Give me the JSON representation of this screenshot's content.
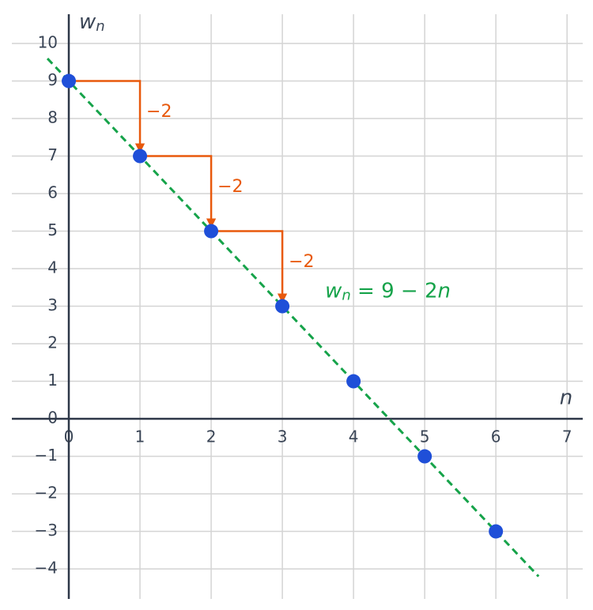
{
  "chart_data": {
    "type": "scatter",
    "x_label": "n",
    "y_label": "w",
    "y_label_subscript": "n",
    "xlim": [
      -0.8,
      7.22
    ],
    "ylim": [
      -4.8,
      10.78
    ],
    "xticks": [
      0,
      1,
      2,
      3,
      4,
      5,
      6,
      7
    ],
    "yticks": [
      {
        "value": -4,
        "label": "−4"
      },
      {
        "value": -3,
        "label": "−3"
      },
      {
        "value": -2,
        "label": "−2"
      },
      {
        "value": -1,
        "label": "−1"
      },
      0,
      1,
      2,
      3,
      4,
      5,
      6,
      7,
      8,
      9,
      10
    ],
    "grid": true,
    "points": {
      "color": "#1f4fd8",
      "x": [
        0,
        1,
        2,
        3,
        4,
        5,
        6
      ],
      "values": [
        9,
        7,
        5,
        3,
        1,
        -1,
        -3
      ]
    },
    "line": {
      "color": "#16a34a",
      "dashed": true,
      "x": [
        -0.3,
        6.6
      ],
      "values": [
        9.6,
        -4.2
      ]
    },
    "line_label": {
      "color": "#16a34a",
      "parts": [
        "w",
        "n",
        " = 9 − 2",
        "n"
      ],
      "x": 3.6,
      "y": 3.4
    },
    "steps": {
      "color": "#e8590c",
      "values": [
        -2,
        -2,
        -2
      ],
      "value_labels": [
        "−2",
        "−2",
        "−2"
      ]
    }
  }
}
